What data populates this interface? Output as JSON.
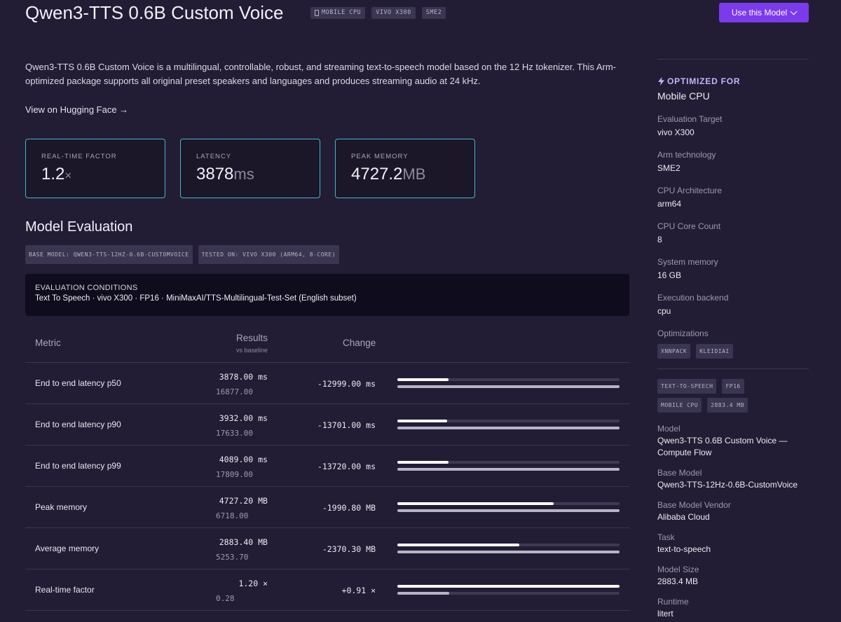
{
  "header": {
    "title": "Qwen3-TTS 0.6B Custom Voice",
    "badges": [
      "MOBILE CPU",
      "VIVO X300",
      "SME2"
    ],
    "use_button": "Use this Model"
  },
  "description": "Qwen3-TTS 0.6B Custom Voice is a multilingual, controllable, robust, and streaming text-to-speech model based on the 12 Hz tokenizer. This Arm-optimized package supports all original preset speakers and languages and produces streaming audio at 24 kHz.",
  "hf_link": "View on Hugging Face →",
  "cards": [
    {
      "label": "REAL-TIME FACTOR",
      "value": "1.2",
      "unit": "×"
    },
    {
      "label": "LATENCY",
      "value": "3878",
      "unit": "ms"
    },
    {
      "label": "PEAK MEMORY",
      "value": "4727.2",
      "unit": "MB"
    }
  ],
  "evaluation": {
    "title": "Model Evaluation",
    "badges": [
      "BASE MODEL: QWEN3-TTS-12HZ-0.6B-CUSTOMVOICE",
      "TESTED ON: VIVO X300 (ARM64, 8-CORE)"
    ],
    "conditions_label": "EVALUATION CONDITIONS",
    "conditions_text": "Text To Speech · vivo X300 · FP16 · MiniMaxAI/TTS-Multilingual-Test-Set (English subset)"
  },
  "table": {
    "headers": {
      "metric": "Metric",
      "results": "Results",
      "results_sub": "vs baseline",
      "change": "Change"
    },
    "rows": [
      {
        "metric": "End to end latency p50",
        "result": "3878.00 ms",
        "baseline": "16877.00",
        "change": "-12999.00 ms",
        "current_frac": 0.23,
        "baseline_frac": 1.0
      },
      {
        "metric": "End to end latency p90",
        "result": "3932.00 ms",
        "baseline": "17633.00",
        "change": "-13701.00 ms",
        "current_frac": 0.223,
        "baseline_frac": 1.0
      },
      {
        "metric": "End to end latency p99",
        "result": "4089.00 ms",
        "baseline": "17809.00",
        "change": "-13720.00 ms",
        "current_frac": 0.23,
        "baseline_frac": 1.0
      },
      {
        "metric": "Peak memory",
        "result": "4727.20 MB",
        "baseline": "6718.00",
        "change": "-1990.80 MB",
        "current_frac": 0.704,
        "baseline_frac": 1.0
      },
      {
        "metric": "Average memory",
        "result": "2883.40 MB",
        "baseline": "5253.70",
        "change": "-2370.30 MB",
        "current_frac": 0.549,
        "baseline_frac": 1.0
      },
      {
        "metric": "Real-time factor",
        "result": "1.20 ×",
        "baseline": "0.28",
        "change": "+0.91 ×",
        "current_frac": 1.0,
        "baseline_frac": 0.233
      }
    ]
  },
  "sidebar": {
    "optimized_for_label": "OPTIMIZED FOR",
    "optimized_for_value": "Mobile CPU",
    "specs": [
      {
        "label": "Evaluation Target",
        "value": "vivo X300"
      },
      {
        "label": "Arm technology",
        "value": "SME2"
      },
      {
        "label": "CPU Architecture",
        "value": "arm64"
      },
      {
        "label": "CPU Core Count",
        "value": "8"
      },
      {
        "label": "System memory",
        "value": "16 GB"
      },
      {
        "label": "Execution backend",
        "value": "cpu"
      }
    ],
    "optimizations_label": "Optimizations",
    "optimizations": [
      "XNNPACK",
      "KLEIDIAI"
    ],
    "tags": [
      "TEXT-TO-SPEECH",
      "FP16",
      "MOBILE CPU",
      "2883.4 MB"
    ],
    "details": [
      {
        "label": "Model",
        "value": "Qwen3-TTS 0.6B Custom Voice — Compute Flow"
      },
      {
        "label": "Base Model",
        "value": "Qwen3-TTS-12Hz-0.6B-CustomVoice"
      },
      {
        "label": "Base Model Vendor",
        "value": "Alibaba Cloud"
      },
      {
        "label": "Task",
        "value": "text-to-speech"
      },
      {
        "label": "Model Size",
        "value": "2883.4 MB"
      },
      {
        "label": "Runtime",
        "value": "litert"
      }
    ]
  },
  "colors": {
    "accent": "#7c3aed",
    "card_border": "#3fb8c9",
    "background": "#221d35"
  }
}
